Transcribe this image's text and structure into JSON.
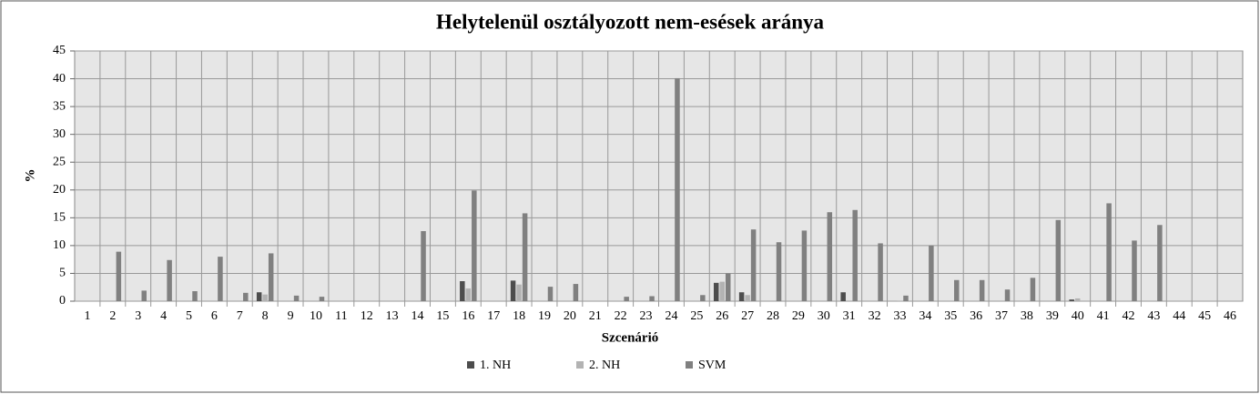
{
  "chart_data": {
    "type": "bar",
    "title": "Helytelenül osztályozott  nem-esések aránya",
    "x_label": "Szcenárió",
    "y_label": "%",
    "categories": [
      "1",
      "2",
      "3",
      "4",
      "5",
      "6",
      "7",
      "8",
      "9",
      "10",
      "11",
      "12",
      "13",
      "14",
      "15",
      "16",
      "17",
      "18",
      "19",
      "20",
      "21",
      "22",
      "23",
      "24",
      "25",
      "26",
      "27",
      "28",
      "29",
      "30",
      "31",
      "32",
      "33",
      "34",
      "35",
      "36",
      "37",
      "38",
      "39",
      "40",
      "41",
      "42",
      "43",
      "44",
      "45",
      "46"
    ],
    "series": [
      {
        "name": "1. NH",
        "color": "#4d4d4d",
        "values": [
          0,
          0,
          0,
          0,
          0,
          0,
          0,
          1.6,
          0,
          0,
          0,
          0,
          0,
          0,
          0,
          3.6,
          0,
          3.7,
          0,
          0,
          0,
          0,
          0,
          0,
          0,
          3.3,
          1.6,
          0,
          0,
          0,
          1.6,
          0,
          0,
          0,
          0,
          0,
          0,
          0,
          0,
          0.3,
          0,
          0,
          0,
          0,
          0,
          0
        ]
      },
      {
        "name": "2. NH",
        "color": "#b3b3b3",
        "values": [
          0,
          0,
          0,
          0,
          0,
          0,
          0,
          1.2,
          0,
          0,
          0,
          0,
          0,
          0,
          0,
          2.3,
          0,
          3.0,
          0,
          0,
          0,
          0,
          0,
          0,
          0,
          3.5,
          1.1,
          0,
          0,
          0,
          0,
          0,
          0.1,
          0,
          0,
          0,
          0,
          0,
          0,
          0.5,
          0,
          0,
          0,
          0,
          0,
          0
        ]
      },
      {
        "name": "SVM",
        "color": "#808080",
        "values": [
          0,
          8.9,
          1.9,
          7.4,
          1.8,
          8.0,
          1.5,
          8.6,
          1.0,
          0.8,
          0,
          0,
          0,
          12.6,
          0,
          19.9,
          0,
          15.8,
          2.6,
          3.1,
          0,
          0.8,
          0.9,
          40.1,
          1.1,
          5.0,
          12.9,
          10.6,
          12.7,
          16.0,
          16.4,
          10.4,
          1.0,
          10.0,
          3.8,
          3.8,
          2.1,
          4.2,
          14.6,
          0,
          17.6,
          10.9,
          13.7,
          0,
          0,
          0
        ]
      }
    ],
    "ylim": [
      0,
      45
    ],
    "yticks": [
      0,
      5,
      10,
      15,
      20,
      25,
      30,
      35,
      40,
      45
    ],
    "grid": true,
    "legend": "bottom"
  }
}
